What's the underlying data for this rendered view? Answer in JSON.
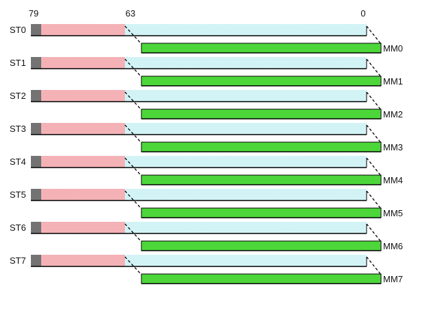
{
  "bit_labels": {
    "high": "79",
    "mid": "63",
    "low": "0"
  },
  "registers": [
    {
      "st": "ST0",
      "mm": "MM0"
    },
    {
      "st": "ST1",
      "mm": "MM1"
    },
    {
      "st": "ST2",
      "mm": "MM2"
    },
    {
      "st": "ST3",
      "mm": "MM3"
    },
    {
      "st": "ST4",
      "mm": "MM4"
    },
    {
      "st": "ST5",
      "mm": "MM5"
    },
    {
      "st": "ST6",
      "mm": "MM6"
    },
    {
      "st": "ST7",
      "mm": "MM7"
    }
  ],
  "colors": {
    "exponent": "#666666",
    "mantissa_high": "#f7b9bd",
    "mantissa_low": "#d4f5f8",
    "mmx": "#4cd63a",
    "outline": "#000000"
  }
}
